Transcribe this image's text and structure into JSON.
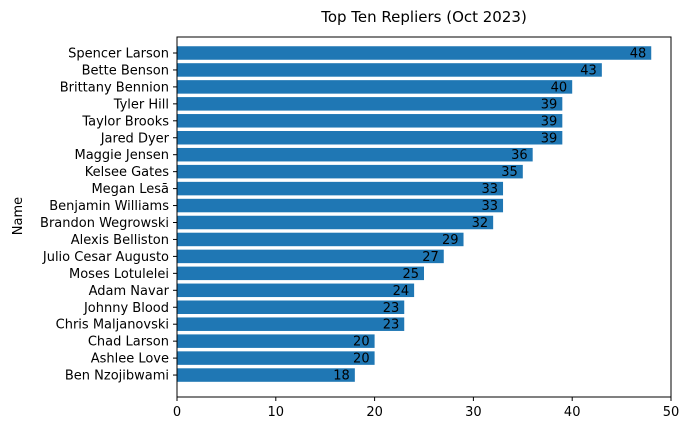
{
  "chart_data": {
    "type": "bar",
    "orientation": "horizontal",
    "title": "Top Ten Repliers (Oct 2023)",
    "xlabel": "",
    "ylabel": "Name",
    "xlim": [
      0,
      50
    ],
    "xticks": [
      0,
      10,
      20,
      30,
      40,
      50
    ],
    "grid": false,
    "bar_color": "#1f77b4",
    "data_labels": true,
    "categories": [
      "Spencer Larson",
      "Bette Benson",
      "Brittany Bennion",
      "Tyler Hill",
      "Taylor Brooks",
      "Jared Dyer",
      "Maggie Jensen",
      "Kelsee Gates",
      "Megan Lesā",
      "Benjamin Williams",
      "Brandon Wegrowski",
      "Alexis Belliston",
      "Julio Cesar Augusto",
      "Moses Lotulelei",
      "Adam Navar",
      "Johnny Blood",
      "Chris Maljanovski",
      "Chad Larson",
      "Ashlee Love",
      "Ben Nzojibwami"
    ],
    "values": [
      48,
      43,
      40,
      39,
      39,
      39,
      36,
      35,
      33,
      33,
      32,
      29,
      27,
      25,
      24,
      23,
      23,
      20,
      20,
      18
    ]
  }
}
